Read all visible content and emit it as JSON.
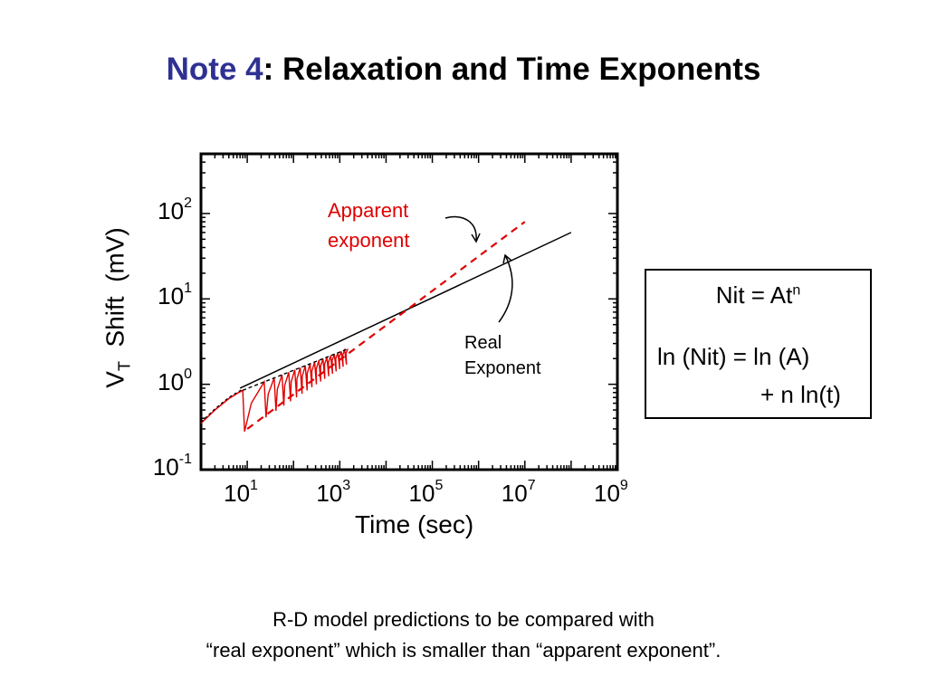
{
  "slide": {
    "title_accent": "Note 4",
    "title_rest": ": Relaxation and Time Exponents",
    "caption_line1": "R-D model predictions to be compared with",
    "caption_line2": "“real exponent”  which is smaller than “apparent exponent”."
  },
  "equations": {
    "line1_base": "Nit = At",
    "line1_sup": "n",
    "line2": "ln (Nit) = ln (A)",
    "line3": "+ n ln(t)"
  },
  "colors": {
    "accent_title": "#2e3192",
    "apparent": "#e00000",
    "real": "#000000"
  },
  "chart_data": {
    "type": "line",
    "xscale": "log",
    "yscale": "log",
    "xlabel": "Time (sec)",
    "ylabel_main": "V",
    "ylabel_sub": "T",
    "ylabel_rest": "  Shift  (mV)",
    "xlim": [
      1,
      1000000000
    ],
    "ylim": [
      0.1,
      500
    ],
    "x_ticks": [
      {
        "base": "10",
        "exp": "1",
        "value": 10
      },
      {
        "base": "10",
        "exp": "3",
        "value": 1000
      },
      {
        "base": "10",
        "exp": "5",
        "value": 100000
      },
      {
        "base": "10",
        "exp": "7",
        "value": 10000000
      },
      {
        "base": "10",
        "exp": "9",
        "value": 1000000000
      }
    ],
    "y_ticks": [
      {
        "base": "10",
        "exp": "-1",
        "value": 0.1
      },
      {
        "base": "10",
        "exp": "0",
        "value": 1
      },
      {
        "base": "10",
        "exp": "1",
        "value": 10
      },
      {
        "base": "10",
        "exp": "2",
        "value": 100
      }
    ],
    "grid": false,
    "series": [
      {
        "kind": "real_exponent_fit",
        "color": "#000000",
        "dash": "solid",
        "x": [
          7,
          100000000
        ],
        "y": [
          0.9,
          60
        ]
      },
      {
        "kind": "apparent_exponent_fit",
        "color": "#e00000",
        "dash": "dashed",
        "x": [
          10,
          10000000
        ],
        "y": [
          0.3,
          80
        ]
      },
      {
        "kind": "stress_data_initial",
        "color": "#e00000",
        "x": [
          1,
          2,
          3,
          4,
          6,
          8
        ],
        "y": [
          0.35,
          0.5,
          0.6,
          0.68,
          0.78,
          0.85
        ]
      },
      {
        "kind": "stress_relax_sawtooth",
        "color": "#e00000",
        "x_start": 8,
        "x_end": 1500,
        "cycles": 18,
        "upper": {
          "x": [
            8,
            1500
          ],
          "y": [
            0.85,
            2.6
          ]
        },
        "lower": {
          "x": [
            10,
            1500
          ],
          "y": [
            0.28,
            1.8
          ]
        }
      }
    ],
    "annotations": [
      {
        "text": "Apparent\nexponent",
        "color": "#e00000"
      },
      {
        "text": "Real\nExponent",
        "color": "#000000"
      }
    ]
  }
}
